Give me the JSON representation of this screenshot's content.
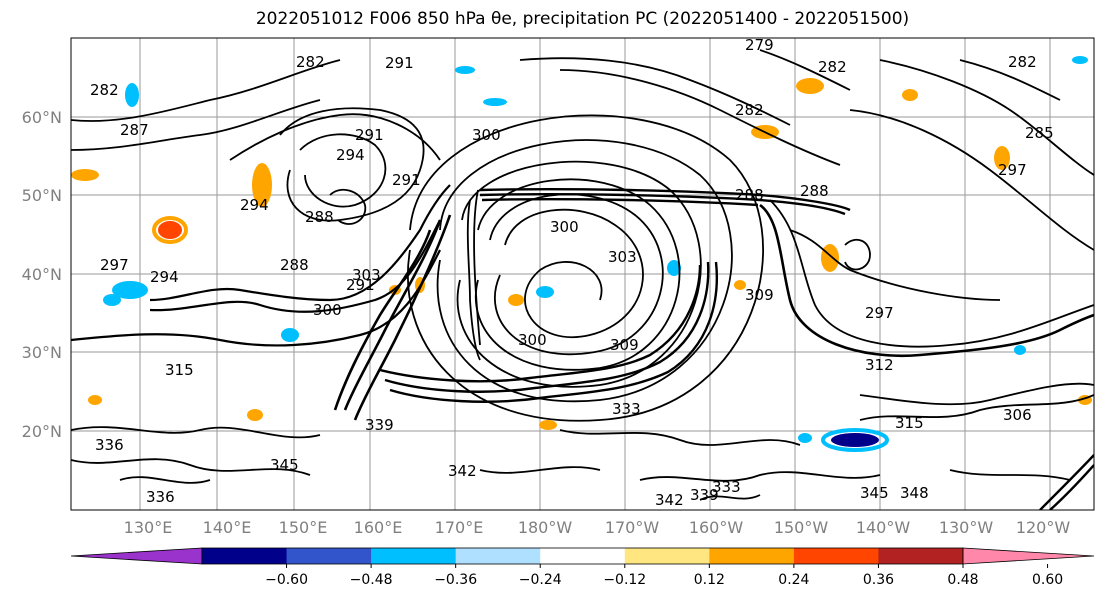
{
  "figure": {
    "title": "2022051012 F006 850 hPa θe, precipitation PC (2022051400 - 2022051500)"
  },
  "map": {
    "lat_labels": [
      "60°N",
      "50°N",
      "40°N",
      "30°N",
      "20°N"
    ],
    "lon_labels": [
      "130°E",
      "140°E",
      "150°E",
      "160°E",
      "170°E",
      "180°W",
      "170°W",
      "160°W",
      "150°W",
      "140°W",
      "130°W",
      "120°W"
    ],
    "contour_labels": [
      "291",
      "282",
      "279",
      "282",
      "288",
      "285",
      "282",
      "282",
      "287",
      "288",
      "291",
      "294",
      "291",
      "300",
      "282",
      "288",
      "297",
      "300",
      "303",
      "300",
      "297",
      "288",
      "294",
      "291",
      "294",
      "297",
      "300",
      "303",
      "309",
      "312",
      "315",
      "309",
      "306",
      "315",
      "333",
      "336",
      "339",
      "342",
      "345",
      "336",
      "339",
      "342",
      "345",
      "348",
      "333"
    ]
  },
  "colorbar": {
    "tick_labels": [
      "−0.60",
      "−0.48",
      "−0.36",
      "−0.24",
      "−0.12",
      "0.12",
      "0.24",
      "0.36",
      "0.48",
      "0.60"
    ],
    "colors": [
      "#9933cc",
      "#00008b",
      "#3355cc",
      "#00bfff",
      "#b0e0ff",
      "#ffffff",
      "#ffe680",
      "#ffa500",
      "#ff4500",
      "#b22222",
      "#ff88aa"
    ]
  }
}
